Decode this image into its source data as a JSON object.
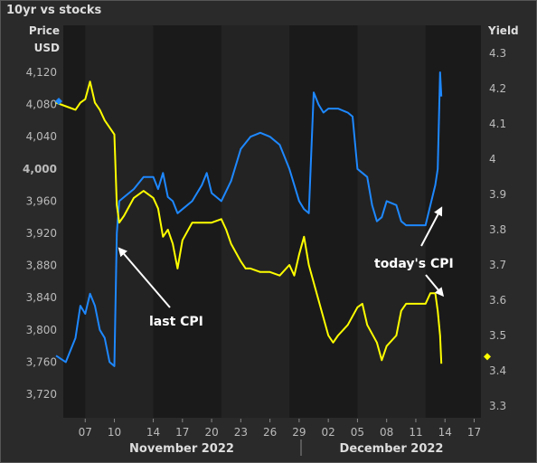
{
  "chart_data": {
    "type": "line",
    "title": "10yr vs stocks",
    "y_left": {
      "label_line1": "Price",
      "label_line2": "USD",
      "range": [
        3680,
        4160
      ],
      "ticks": [
        "3,720",
        "3,760",
        "3,800",
        "3,840",
        "3,880",
        "3,920",
        "3,960",
        "4,000",
        "4,040",
        "4,080",
        "4,120"
      ],
      "tick_values": [
        3720,
        3760,
        3800,
        3840,
        3880,
        3920,
        3960,
        4000,
        4040,
        4080,
        4120
      ]
    },
    "y_right": {
      "label": "Yield",
      "range": [
        3.25,
        4.35
      ],
      "ticks": [
        "3.3",
        "3.4",
        "3.5",
        "3.6",
        "3.7",
        "3.8",
        "3.9",
        "4",
        "4.1",
        "4.2",
        "4.3"
      ],
      "tick_values": [
        3.3,
        3.4,
        3.5,
        3.6,
        3.7,
        3.8,
        3.9,
        4.0,
        4.1,
        4.2,
        4.3
      ]
    },
    "x_axis": {
      "range": [
        "2022-11-04",
        "2022-12-19"
      ],
      "ticks": [
        {
          "date": "2022-11-07",
          "label": "07"
        },
        {
          "date": "2022-11-10",
          "label": "10"
        },
        {
          "date": "2022-11-14",
          "label": "14"
        },
        {
          "date": "2022-11-17",
          "label": "17"
        },
        {
          "date": "2022-11-20",
          "label": "20"
        },
        {
          "date": "2022-11-23",
          "label": "23"
        },
        {
          "date": "2022-11-26",
          "label": "26"
        },
        {
          "date": "2022-11-29",
          "label": "29"
        },
        {
          "date": "2022-12-02",
          "label": "02"
        },
        {
          "date": "2022-12-05",
          "label": "05"
        },
        {
          "date": "2022-12-08",
          "label": "08"
        },
        {
          "date": "2022-12-11",
          "label": "11"
        },
        {
          "date": "2022-12-14",
          "label": "14"
        },
        {
          "date": "2022-12-17",
          "label": "17"
        }
      ],
      "months": [
        "November 2022",
        "December 2022"
      ]
    },
    "grid": false,
    "series": [
      {
        "color": "#1e88ff",
        "axis": "left",
        "points": [
          [
            "2022-11-04",
            3768
          ],
          [
            "2022-11-05",
            3760
          ],
          [
            "2022-11-06",
            3790
          ],
          [
            "2022-11-06T12:00",
            3830
          ],
          [
            "2022-11-07",
            3820
          ],
          [
            "2022-11-07T12:00",
            3845
          ],
          [
            "2022-11-08",
            3830
          ],
          [
            "2022-11-08T12:00",
            3800
          ],
          [
            "2022-11-09",
            3790
          ],
          [
            "2022-11-09T12:00",
            3760
          ],
          [
            "2022-11-10",
            3755
          ],
          [
            "2022-11-10T06:00",
            3920
          ],
          [
            "2022-11-10T12:00",
            3960
          ],
          [
            "2022-11-11",
            3965
          ],
          [
            "2022-11-12",
            3975
          ],
          [
            "2022-11-13",
            3990
          ],
          [
            "2022-11-14",
            3990
          ],
          [
            "2022-11-14T12:00",
            3975
          ],
          [
            "2022-11-15",
            3995
          ],
          [
            "2022-11-15T12:00",
            3965
          ],
          [
            "2022-11-16",
            3960
          ],
          [
            "2022-11-16T12:00",
            3945
          ],
          [
            "2022-11-17",
            3950
          ],
          [
            "2022-11-18",
            3960
          ],
          [
            "2022-11-19",
            3980
          ],
          [
            "2022-11-19T12:00",
            3995
          ],
          [
            "2022-11-20",
            3970
          ],
          [
            "2022-11-21",
            3960
          ],
          [
            "2022-11-22",
            3985
          ],
          [
            "2022-11-23",
            4025
          ],
          [
            "2022-11-24",
            4040
          ],
          [
            "2022-11-25",
            4045
          ],
          [
            "2022-11-26",
            4040
          ],
          [
            "2022-11-27",
            4030
          ],
          [
            "2022-11-28",
            4000
          ],
          [
            "2022-11-28T12:00",
            3980
          ],
          [
            "2022-11-29",
            3960
          ],
          [
            "2022-11-29T12:00",
            3950
          ],
          [
            "2022-11-30",
            3945
          ],
          [
            "2022-11-30T12:00",
            4095
          ],
          [
            "2022-12-01",
            4080
          ],
          [
            "2022-12-01T12:00",
            4070
          ],
          [
            "2022-12-02",
            4075
          ],
          [
            "2022-12-03",
            4075
          ],
          [
            "2022-12-04",
            4070
          ],
          [
            "2022-12-04T12:00",
            4065
          ],
          [
            "2022-12-05",
            4000
          ],
          [
            "2022-12-06",
            3990
          ],
          [
            "2022-12-06T12:00",
            3955
          ],
          [
            "2022-12-07",
            3935
          ],
          [
            "2022-12-07T12:00",
            3940
          ],
          [
            "2022-12-08",
            3960
          ],
          [
            "2022-12-09",
            3955
          ],
          [
            "2022-12-09T12:00",
            3935
          ],
          [
            "2022-12-10",
            3930
          ],
          [
            "2022-12-11",
            3930
          ],
          [
            "2022-12-12",
            3930
          ],
          [
            "2022-12-12T12:00",
            3955
          ],
          [
            "2022-12-13",
            3980
          ],
          [
            "2022-12-13T06:00",
            4000
          ],
          [
            "2022-12-13T12:00",
            4120
          ],
          [
            "2022-12-13T15:00",
            4090
          ]
        ]
      },
      {
        "color": "#ffff00",
        "axis": "right",
        "points": [
          [
            "2022-11-04",
            4.16
          ],
          [
            "2022-11-05",
            4.15
          ],
          [
            "2022-11-06",
            4.14
          ],
          [
            "2022-11-06T12:00",
            4.16
          ],
          [
            "2022-11-07",
            4.17
          ],
          [
            "2022-11-07T12:00",
            4.22
          ],
          [
            "2022-11-08",
            4.16
          ],
          [
            "2022-11-08T12:00",
            4.14
          ],
          [
            "2022-11-09",
            4.11
          ],
          [
            "2022-11-09T12:00",
            4.09
          ],
          [
            "2022-11-10",
            4.07
          ],
          [
            "2022-11-10T06:00",
            3.87
          ],
          [
            "2022-11-10T12:00",
            3.82
          ],
          [
            "2022-11-11",
            3.84
          ],
          [
            "2022-11-12",
            3.89
          ],
          [
            "2022-11-13",
            3.91
          ],
          [
            "2022-11-14",
            3.89
          ],
          [
            "2022-11-14T12:00",
            3.86
          ],
          [
            "2022-11-15",
            3.78
          ],
          [
            "2022-11-15T12:00",
            3.8
          ],
          [
            "2022-11-16",
            3.76
          ],
          [
            "2022-11-16T12:00",
            3.69
          ],
          [
            "2022-11-17",
            3.77
          ],
          [
            "2022-11-18",
            3.82
          ],
          [
            "2022-11-19",
            3.82
          ],
          [
            "2022-11-20",
            3.82
          ],
          [
            "2022-11-21",
            3.83
          ],
          [
            "2022-11-21T12:00",
            3.8
          ],
          [
            "2022-11-22",
            3.76
          ],
          [
            "2022-11-23",
            3.71
          ],
          [
            "2022-11-23T12:00",
            3.69
          ],
          [
            "2022-11-24",
            3.69
          ],
          [
            "2022-11-25",
            3.68
          ],
          [
            "2022-11-26",
            3.68
          ],
          [
            "2022-11-27",
            3.67
          ],
          [
            "2022-11-28",
            3.7
          ],
          [
            "2022-11-28T12:00",
            3.67
          ],
          [
            "2022-11-29",
            3.73
          ],
          [
            "2022-11-29T12:00",
            3.78
          ],
          [
            "2022-11-30",
            3.7
          ],
          [
            "2022-12-01",
            3.6
          ],
          [
            "2022-12-01T12:00",
            3.55
          ],
          [
            "2022-12-02",
            3.5
          ],
          [
            "2022-12-02T12:00",
            3.48
          ],
          [
            "2022-12-03",
            3.5
          ],
          [
            "2022-12-04",
            3.53
          ],
          [
            "2022-12-05",
            3.58
          ],
          [
            "2022-12-05T12:00",
            3.59
          ],
          [
            "2022-12-06",
            3.53
          ],
          [
            "2022-12-07",
            3.48
          ],
          [
            "2022-12-07T12:00",
            3.43
          ],
          [
            "2022-12-08",
            3.47
          ],
          [
            "2022-12-09",
            3.5
          ],
          [
            "2022-12-09T12:00",
            3.57
          ],
          [
            "2022-12-10",
            3.59
          ],
          [
            "2022-12-11",
            3.59
          ],
          [
            "2022-12-12",
            3.59
          ],
          [
            "2022-12-12T12:00",
            3.62
          ],
          [
            "2022-12-13",
            3.62
          ],
          [
            "2022-12-13T06:00",
            3.57
          ],
          [
            "2022-12-13T12:00",
            3.5
          ],
          [
            "2022-12-13T15:00",
            3.42
          ]
        ]
      }
    ],
    "markers": [
      {
        "axis": "left",
        "value": 4084,
        "color": "#1e88ff",
        "side": "left"
      },
      {
        "axis": "right",
        "value": 3.44,
        "color": "#ffff00",
        "side": "right"
      }
    ],
    "annotations": [
      {
        "text": "last CPI",
        "date": "2022-11-10T12:00",
        "axis": "left",
        "value": 3885
      },
      {
        "text": "today's CPI",
        "date": "2022-12-13T12:00",
        "axis": "left",
        "value": 3935
      },
      {
        "text": "today's CPI",
        "date": "2022-12-13T12:00",
        "axis": "right",
        "value": 3.63
      }
    ]
  }
}
